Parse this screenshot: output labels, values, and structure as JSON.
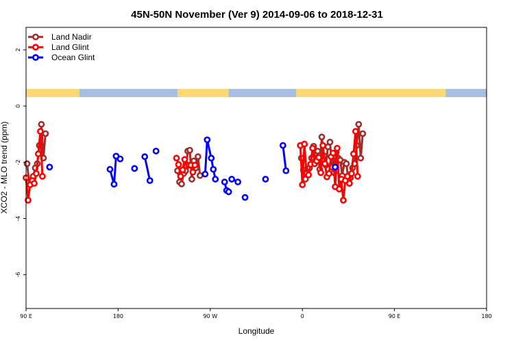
{
  "chart_data": {
    "type": "line",
    "title": "45N-50N November (Ver 9)   2014-09-06 to 2018-12-31",
    "xlabel": "Longitude",
    "ylabel": "XCO2 - MLO trend (ppm)",
    "xlim": [
      90,
      540
    ],
    "ylim": [
      -7.2,
      2.8
    ],
    "x_ticks": [
      {
        "value": 90,
        "label": "90 E"
      },
      {
        "value": 180,
        "label": "180"
      },
      {
        "value": 270,
        "label": "90 W"
      },
      {
        "value": 360,
        "label": "0"
      },
      {
        "value": 450,
        "label": "90 E"
      },
      {
        "value": 540,
        "label": "180"
      }
    ],
    "y_ticks": [
      {
        "value": 2,
        "label": "2"
      },
      {
        "value": 0,
        "label": "0"
      },
      {
        "value": -2,
        "label": "-2"
      },
      {
        "value": -4,
        "label": "-4"
      },
      {
        "value": -6,
        "label": "-6"
      }
    ],
    "grid": false,
    "legend_position": "top-left",
    "land_ocean_band": {
      "land_color": "#FCD877",
      "ocean_color": "#A8BEDF",
      "land_ranges": [
        [
          90,
          142
        ],
        [
          238,
          288
        ],
        [
          354,
          500
        ]
      ]
    },
    "series": [
      {
        "name": "Land Nadir",
        "color": "#A52A2A",
        "segments": [
          [
            [
              91,
              -2.05
            ],
            [
              93,
              -2.7
            ],
            [
              95,
              -2.65
            ],
            [
              97,
              -2.5
            ],
            [
              99,
              -2.2
            ],
            [
              101,
              -2.05
            ],
            [
              103,
              -1.4
            ],
            [
              105,
              -0.65
            ],
            [
              107,
              -1.85
            ],
            [
              109,
              -0.98
            ]
          ],
          [
            [
              238,
              -2.3
            ],
            [
              240,
              -2.7
            ],
            [
              242,
              -2.77
            ],
            [
              244,
              -2.4
            ],
            [
              246,
              -2.3
            ],
            [
              248,
              -1.6
            ],
            [
              250,
              -1.57
            ],
            [
              252,
              -2.6
            ],
            [
              254,
              -1.95
            ],
            [
              256,
              -2.2
            ],
            [
              258,
              -1.8
            ],
            [
              260,
              -2.47
            ]
          ],
          [
            [
              359,
              -1.85
            ],
            [
              361,
              -2.27
            ],
            [
              363,
              -2.6
            ],
            [
              365,
              -2.3
            ],
            [
              367,
              -2.2
            ],
            [
              369,
              -1.85
            ],
            [
              371,
              -1.43
            ],
            [
              373,
              -2.0
            ],
            [
              375,
              -1.6
            ],
            [
              377,
              -2.25
            ],
            [
              379,
              -1.1
            ],
            [
              381,
              -1.77
            ],
            [
              383,
              -2.1
            ],
            [
              385,
              -1.45
            ],
            [
              387,
              -1.28
            ],
            [
              389,
              -2.17
            ],
            [
              391,
              -2.37
            ],
            [
              393,
              -1.65
            ],
            [
              395,
              -1.85
            ],
            [
              397,
              -1.92
            ],
            [
              399,
              -2.48
            ],
            [
              401,
              -2.0
            ],
            [
              403,
              -2.05
            ],
            [
              405,
              -2.65
            ],
            [
              407,
              -2.55
            ],
            [
              409,
              -2.2
            ],
            [
              411,
              -2.05
            ],
            [
              413,
              -1.4
            ],
            [
              415,
              -0.65
            ],
            [
              417,
              -1.85
            ],
            [
              419,
              -0.98
            ]
          ]
        ]
      },
      {
        "name": "Land Glint",
        "color": "#FF0000",
        "segments": [
          [
            [
              90,
              -2.55
            ],
            [
              92,
              -3.35
            ],
            [
              94,
              -2.8
            ],
            [
              96,
              -2.65
            ],
            [
              98,
              -2.75
            ],
            [
              100,
              -2.4
            ],
            [
              102,
              -1.7
            ],
            [
              104,
              -0.9
            ],
            [
              106,
              -2.5
            ]
          ],
          [
            [
              237,
              -1.85
            ],
            [
              239,
              -2.08
            ],
            [
              241,
              -2.5
            ],
            [
              243,
              -2.27
            ],
            [
              245,
              -1.9
            ],
            [
              247,
              -2.13
            ],
            [
              249,
              -2.1
            ],
            [
              251,
              -2.1
            ],
            [
              253,
              -2.35
            ],
            [
              255,
              -2.1
            ]
          ],
          [
            [
              358,
              -1.4
            ],
            [
              360,
              -2.8
            ],
            [
              362,
              -1.35
            ],
            [
              364,
              -2.4
            ],
            [
              366,
              -2.45
            ],
            [
              368,
              -2.07
            ],
            [
              370,
              -1.5
            ],
            [
              372,
              -2.05
            ],
            [
              374,
              -1.95
            ],
            [
              376,
              -1.83
            ],
            [
              378,
              -2.37
            ],
            [
              380,
              -1.4
            ],
            [
              382,
              -2.05
            ],
            [
              384,
              -2.52
            ],
            [
              386,
              -2.4
            ],
            [
              388,
              -1.8
            ],
            [
              390,
              -1.67
            ],
            [
              392,
              -2.87
            ],
            [
              394,
              -1.5
            ],
            [
              396,
              -2.95
            ],
            [
              398,
              -2.6
            ],
            [
              400,
              -3.35
            ],
            [
              402,
              -2.65
            ],
            [
              404,
              -2.5
            ],
            [
              406,
              -2.75
            ],
            [
              408,
              -2.4
            ],
            [
              410,
              -1.7
            ],
            [
              412,
              -0.9
            ],
            [
              414,
              -2.5
            ]
          ]
        ]
      },
      {
        "name": "Ocean Glint",
        "color": "#0000FF",
        "segments": [
          [
            [
              113,
              -2.17
            ]
          ],
          [
            [
              172,
              -2.25
            ],
            [
              176,
              -2.78
            ],
            [
              178,
              -1.78
            ],
            [
              182,
              -1.88
            ]
          ],
          [
            [
              196,
              -2.22
            ]
          ],
          [
            [
              206,
              -1.8
            ],
            [
              211,
              -2.65
            ]
          ],
          [
            [
              217,
              -1.6
            ]
          ],
          [
            [
              265,
              -2.42
            ],
            [
              267,
              -1.2
            ],
            [
              271,
              -1.85
            ],
            [
              273,
              -2.25
            ],
            [
              275,
              -2.6
            ]
          ],
          [
            [
              284,
              -2.7
            ],
            [
              286,
              -3.0
            ],
            [
              288,
              -3.05
            ]
          ],
          [
            [
              291,
              -2.6
            ],
            [
              297,
              -2.7
            ]
          ],
          [
            [
              304,
              -3.25
            ]
          ],
          [
            [
              324,
              -2.6
            ]
          ],
          [
            [
              341,
              -1.4
            ],
            [
              344,
              -2.3
            ]
          ],
          [
            [
              392,
              -2.17
            ]
          ]
        ]
      }
    ]
  }
}
